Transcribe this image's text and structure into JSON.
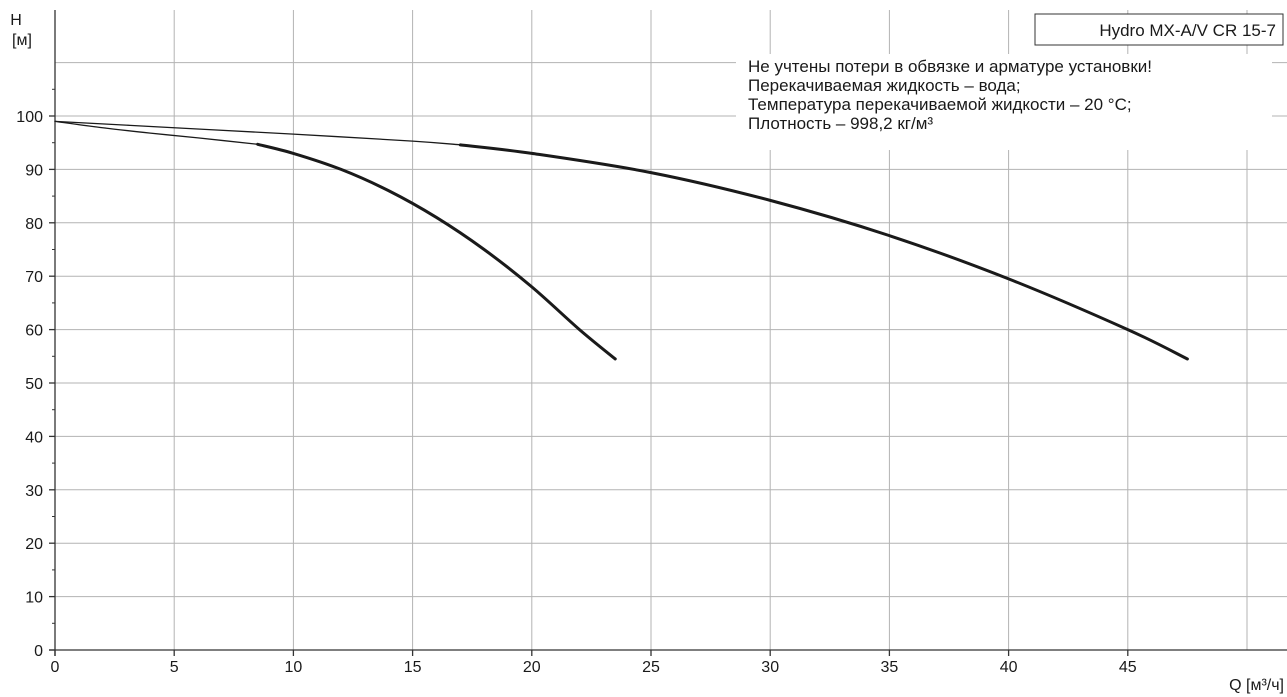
{
  "chart_data": {
    "type": "line",
    "title": "Hydro MX-A/V CR 15-7",
    "ylabel_symbol": "H",
    "ylabel_unit": "[м]",
    "xlabel": "Q [м³/ч]",
    "xlim": [
      0,
      50
    ],
    "ylim": [
      0,
      110
    ],
    "x_ticks": [
      0,
      5,
      10,
      15,
      20,
      25,
      30,
      35,
      40,
      45
    ],
    "y_ticks": [
      0,
      10,
      20,
      30,
      40,
      50,
      60,
      70,
      80,
      90,
      100
    ],
    "grid": true,
    "notes": [
      "Не учтены потери в обвязке и арматуре установки!",
      "Перекачиваемая жидкость – вода;",
      "Температура перекачиваемой жидкости – 20 °С;",
      "Плотность – 998,2 кг/м³"
    ],
    "series": [
      {
        "x": [
          0,
          2,
          4,
          6,
          8.5
        ],
        "y": [
          99,
          97.8,
          96.8,
          95.9,
          94.7
        ],
        "style": "thin"
      },
      {
        "x": [
          8.5,
          10,
          12,
          14,
          16,
          18,
          20,
          22,
          23.5
        ],
        "y": [
          94.7,
          93,
          90,
          86,
          81,
          75,
          68,
          60,
          54.5
        ],
        "style": "thick"
      },
      {
        "x": [
          0,
          5,
          10,
          15,
          17
        ],
        "y": [
          99,
          97.8,
          96.6,
          95.3,
          94.6
        ],
        "style": "thin"
      },
      {
        "x": [
          17,
          20,
          25,
          30,
          35,
          40,
          45,
          47.5
        ],
        "y": [
          94.6,
          93,
          89.4,
          84.2,
          77.6,
          69.5,
          60,
          54.5
        ],
        "style": "thick"
      }
    ]
  }
}
